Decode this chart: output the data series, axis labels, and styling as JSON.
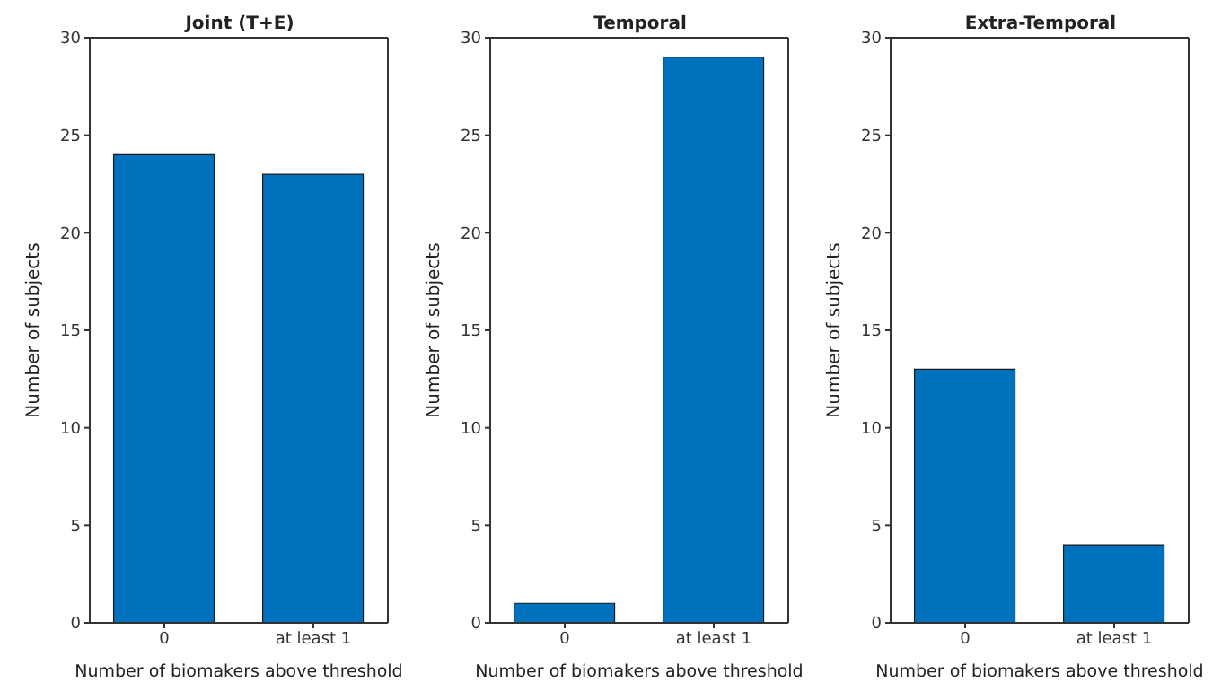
{
  "chart_data": [
    {
      "type": "bar",
      "title": "Joint (T+E)",
      "categories": [
        "0",
        "at least 1"
      ],
      "values": [
        24,
        23
      ],
      "color": "#0072bd",
      "ylim": [
        0,
        30
      ],
      "yticks": [
        0,
        5,
        10,
        15,
        20,
        25,
        30
      ],
      "xlabel": "Number of biomakers above threshold",
      "ylabel": "Number of subjects"
    },
    {
      "type": "bar",
      "title": "Temporal",
      "categories": [
        "0",
        "at least 1"
      ],
      "values": [
        1,
        29
      ],
      "color": "#0072bd",
      "ylim": [
        0,
        30
      ],
      "yticks": [
        0,
        5,
        10,
        15,
        20,
        25,
        30
      ],
      "xlabel": "Number of biomakers above threshold",
      "ylabel": "Number of subjects"
    },
    {
      "type": "bar",
      "title": "Extra-Temporal",
      "categories": [
        "0",
        "at least 1"
      ],
      "values": [
        13,
        4
      ],
      "color": "#0072bd",
      "ylim": [
        0,
        30
      ],
      "yticks": [
        0,
        5,
        10,
        15,
        20,
        25,
        30
      ],
      "xlabel": "Number of biomakers above threshold",
      "ylabel": "Number of subjects"
    }
  ]
}
